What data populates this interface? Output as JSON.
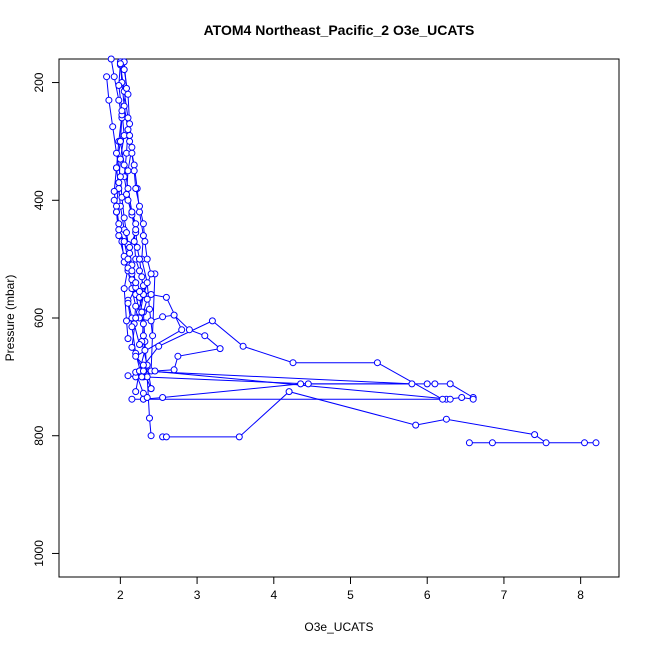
{
  "chart_data": {
    "type": "line",
    "title": "ATOM4 Northeast_Pacific_2 O3e_UCATS",
    "xlabel": "O3e_UCATS",
    "ylabel": "Pressure (mbar)",
    "xlim": [
      1.2,
      8.5
    ],
    "ylim": [
      1040,
      160
    ],
    "y_inverted": true,
    "xticks": [
      2,
      3,
      4,
      5,
      6,
      7,
      8
    ],
    "yticks": [
      200,
      400,
      600,
      800,
      1000
    ],
    "grid": false,
    "legend": "none",
    "color": "#0000ff",
    "markers": "open-circle",
    "series": [
      {
        "x": [
          2.55,
          2.6,
          3.55,
          4.2,
          5.85,
          6.25,
          7.4,
          7.55,
          8.05,
          6.55,
          6.85,
          8.2
        ],
        "y": [
          802,
          802,
          802,
          725,
          782,
          772,
          798,
          812,
          812,
          812,
          812,
          812
        ]
      },
      {
        "x": [
          2.3,
          2.55,
          4.35,
          6.0,
          6.1,
          6.3,
          6.6,
          6.6,
          6.45,
          6.25,
          6.3,
          2.4,
          2.45
        ],
        "y": [
          738,
          735,
          712,
          712,
          712,
          712,
          735,
          738,
          735,
          738,
          738,
          690,
          525
        ]
      },
      {
        "x": [
          2.1,
          2.2,
          2.3,
          4.45,
          5.8,
          2.25,
          2.5,
          3.2,
          3.6,
          4.25,
          5.35,
          6.2,
          2.3,
          2.15
        ],
        "y": [
          698,
          700,
          700,
          712,
          712,
          690,
          648,
          605,
          648,
          676,
          676,
          738,
          738,
          738
        ]
      },
      {
        "x": [
          2.1,
          2.15,
          2.4,
          2.55,
          2.7,
          2.9,
          3.1,
          3.3,
          2.75,
          2.7,
          2.45,
          2.2,
          2.3,
          2.35
        ],
        "y": [
          570,
          600,
          605,
          598,
          595,
          620,
          630,
          652,
          665,
          688,
          690,
          692,
          728,
          735
        ]
      },
      {
        "x": [
          2.0,
          2.02,
          2.05,
          2.1,
          2.08,
          2.05,
          2.1,
          2.15,
          2.2,
          2.18,
          2.2,
          2.25,
          2.3,
          2.35,
          2.3,
          2.32,
          2.35,
          2.38,
          2.4
        ],
        "y": [
          165,
          200,
          240,
          280,
          320,
          360,
          400,
          420,
          440,
          470,
          500,
          520,
          545,
          568,
          590,
          640,
          700,
          770,
          800
        ]
      },
      {
        "x": [
          1.88,
          1.92,
          1.98,
          2.02,
          2.0,
          1.95,
          1.98,
          2.0,
          2.05,
          2.1,
          2.12,
          2.15,
          2.2,
          2.25,
          2.3,
          2.28,
          2.35,
          2.4
        ],
        "y": [
          160,
          190,
          230,
          260,
          300,
          345,
          380,
          410,
          450,
          475,
          510,
          535,
          560,
          590,
          610,
          640,
          680,
          720
        ]
      },
      {
        "x": [
          1.82,
          1.85,
          1.9,
          1.95,
          2.0,
          2.02,
          2.05,
          2.08,
          2.12,
          2.15,
          2.2,
          2.25,
          2.28,
          2.3,
          2.32,
          2.25,
          2.2
        ],
        "y": [
          190,
          230,
          275,
          320,
          360,
          395,
          430,
          455,
          490,
          510,
          540,
          565,
          590,
          630,
          655,
          690,
          725
        ]
      },
      {
        "x": [
          2.0,
          2.05,
          2.1,
          2.12,
          2.18,
          2.22,
          2.25,
          2.3,
          2.28,
          2.35,
          2.38,
          2.42
        ],
        "y": [
          170,
          215,
          260,
          300,
          340,
          380,
          420,
          460,
          500,
          540,
          585,
          630
        ]
      },
      {
        "x": [
          2.05,
          2.08,
          2.02,
          1.98,
          1.95,
          1.92,
          1.95,
          1.98,
          2.05,
          2.1,
          2.15,
          2.2,
          2.18,
          2.25
        ],
        "y": [
          165,
          210,
          255,
          300,
          345,
          385,
          420,
          460,
          495,
          520,
          550,
          580,
          610,
          645
        ]
      },
      {
        "x": [
          2.05,
          2.1,
          2.12,
          2.15,
          2.1,
          2.08,
          2.15,
          2.2,
          2.12,
          2.1,
          2.05,
          2.08,
          2.1
        ],
        "y": [
          178,
          220,
          270,
          310,
          350,
          390,
          425,
          455,
          480,
          515,
          550,
          605,
          635
        ]
      },
      {
        "x": [
          2.0,
          1.98,
          2.02,
          2.05,
          2.0,
          1.98,
          1.95,
          1.98,
          2.02,
          2.05,
          2.15,
          2.2,
          2.1,
          2.15,
          2.2,
          2.28
        ],
        "y": [
          168,
          205,
          248,
          290,
          330,
          370,
          410,
          440,
          470,
          505,
          525,
          548,
          575,
          615,
          660,
          700
        ]
      },
      {
        "x": [
          2.12,
          2.15,
          2.18,
          2.2,
          2.25,
          2.3,
          2.32,
          2.35,
          2.4,
          2.3,
          2.25
        ],
        "y": [
          290,
          320,
          350,
          380,
          410,
          440,
          470,
          500,
          525,
          560,
          600
        ]
      },
      {
        "x": [
          2.0,
          2.05,
          2.1,
          2.15,
          2.2,
          2.22,
          2.25,
          2.28,
          2.3,
          2.2,
          2.15,
          2.3,
          2.4
        ],
        "y": [
          300,
          340,
          380,
          420,
          450,
          480,
          500,
          530,
          560,
          600,
          650,
          690,
          720
        ]
      },
      {
        "x": [
          1.92,
          1.95,
          1.98,
          2.05,
          2.1,
          2.15,
          2.2,
          2.25,
          2.4,
          2.6,
          2.8,
          2.2,
          2.3
        ],
        "y": [
          400,
          420,
          450,
          470,
          500,
          520,
          540,
          555,
          560,
          565,
          620,
          665,
          680
        ]
      }
    ]
  }
}
